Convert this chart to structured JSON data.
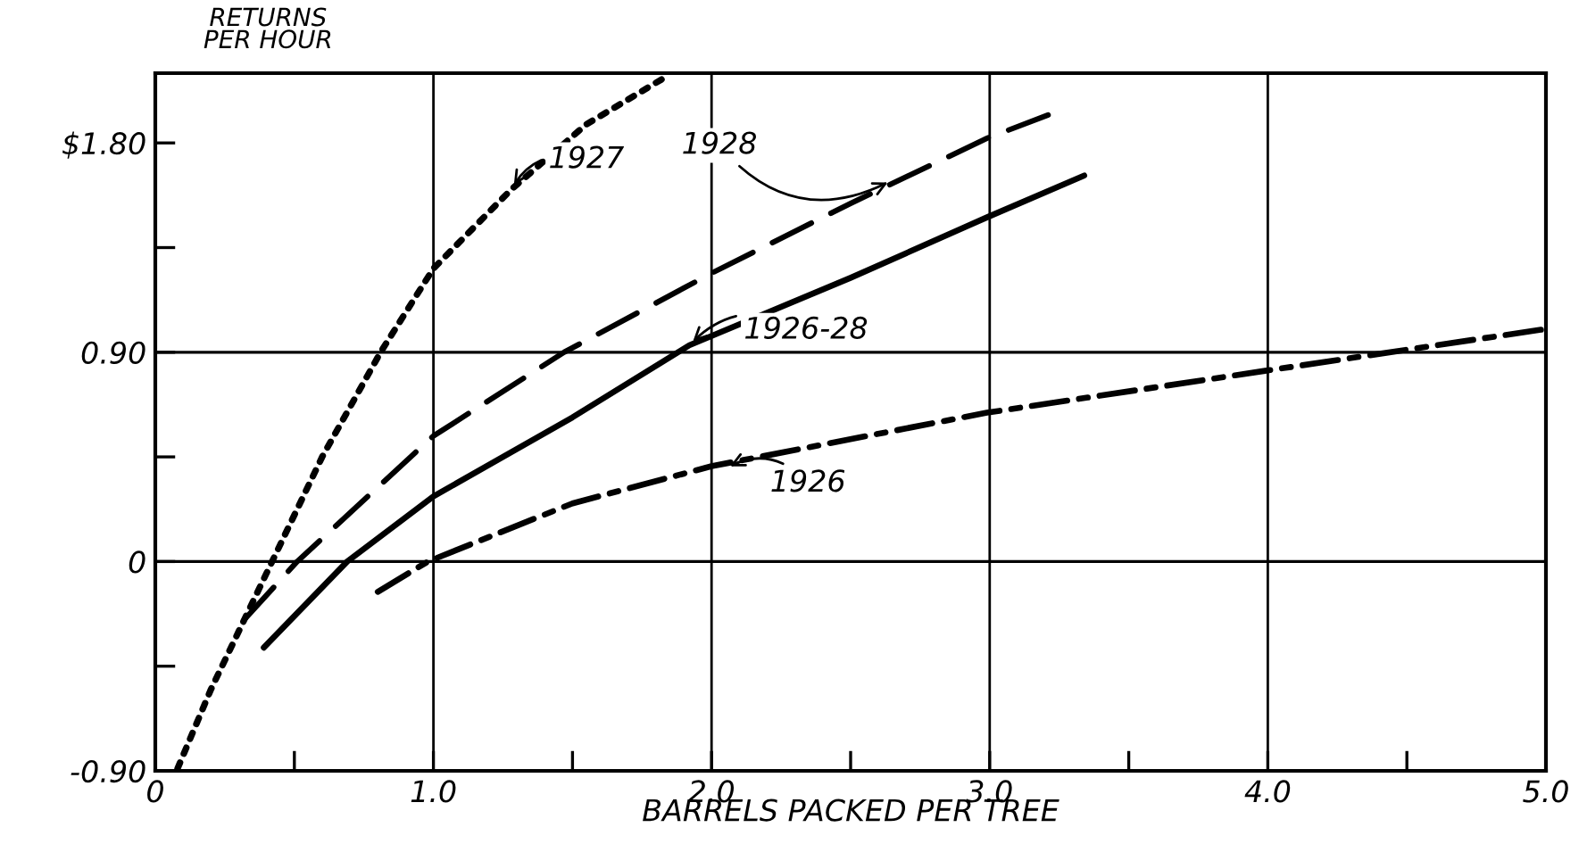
{
  "chart_data": {
    "type": "line",
    "ylabel": "RETURNS\nPER HOUR",
    "xlabel": "BARRELS PACKED PER TREE",
    "xlim": [
      0,
      5.0
    ],
    "ylim": [
      -0.9,
      2.1
    ],
    "xticks": [
      0,
      {
        "value": 0.5,
        "label": null
      },
      {
        "value": 1,
        "label": "1.0"
      },
      {
        "value": 1.5,
        "label": null
      },
      {
        "value": 2,
        "label": "2.0"
      },
      {
        "value": 2.5,
        "label": null
      },
      {
        "value": 3,
        "label": "3.0"
      },
      {
        "value": 3.5,
        "label": null
      },
      {
        "value": 4,
        "label": "4.0"
      },
      {
        "value": 4.5,
        "label": null
      },
      {
        "value": 5,
        "label": "5.0"
      }
    ],
    "yticks": [
      {
        "value": -0.9,
        "label": "-0.90"
      },
      {
        "value": -0.45,
        "label": null
      },
      0,
      {
        "value": 0.45,
        "label": null
      },
      {
        "value": 0.9,
        "label": "0.90"
      },
      {
        "value": 1.35,
        "label": null
      },
      {
        "value": 1.8,
        "label": "$1.80"
      }
    ],
    "grid": "x",
    "legend": false,
    "marker": "none",
    "ref_lines": [
      {
        "axis": "y",
        "value": 0,
        "color": "#000000"
      },
      {
        "axis": "y",
        "value": 0.9,
        "color": "#000000"
      }
    ],
    "series": [
      {
        "color": "#000000",
        "line_style": "dotted",
        "x": [
          0.08,
          0.2,
          0.32,
          0.42,
          0.6,
          0.81,
          1.0,
          1.28,
          1.55,
          1.83
        ],
        "values": [
          -0.89,
          -0.55,
          -0.25,
          0,
          0.45,
          0.9,
          1.26,
          1.6,
          1.88,
          2.08
        ]
      },
      {
        "color": "#000000",
        "line_style": "dashed",
        "x": [
          0.32,
          0.51,
          1.0,
          1.47,
          2.0,
          2.5,
          2.99,
          3.21
        ],
        "values": [
          -0.25,
          0,
          0.54,
          0.9,
          1.24,
          1.54,
          1.82,
          1.92
        ]
      },
      {
        "color": "#000000",
        "line_style": "solid",
        "x": [
          0.39,
          0.69,
          1.0,
          1.5,
          1.92,
          2.5,
          2.99,
          3.34
        ],
        "values": [
          -0.37,
          0,
          0.28,
          0.62,
          0.93,
          1.22,
          1.48,
          1.66
        ]
      },
      {
        "color": "#000000",
        "line_style": "dashdot",
        "x": [
          0.8,
          0.98,
          1.5,
          2.0,
          2.99,
          3.99,
          5.0
        ],
        "values": [
          -0.13,
          0,
          0.25,
          0.41,
          0.64,
          0.82,
          1.0
        ]
      }
    ],
    "annotations": [
      {
        "text": "1927",
        "x": 1.28,
        "y": 1.6
      },
      {
        "text": "1928",
        "x": 2.65,
        "y": 1.64
      },
      {
        "text": "1926-28",
        "x": 1.92,
        "y": 0.93
      },
      {
        "text": "1926",
        "x": 2.05,
        "y": 0.4
      }
    ]
  }
}
